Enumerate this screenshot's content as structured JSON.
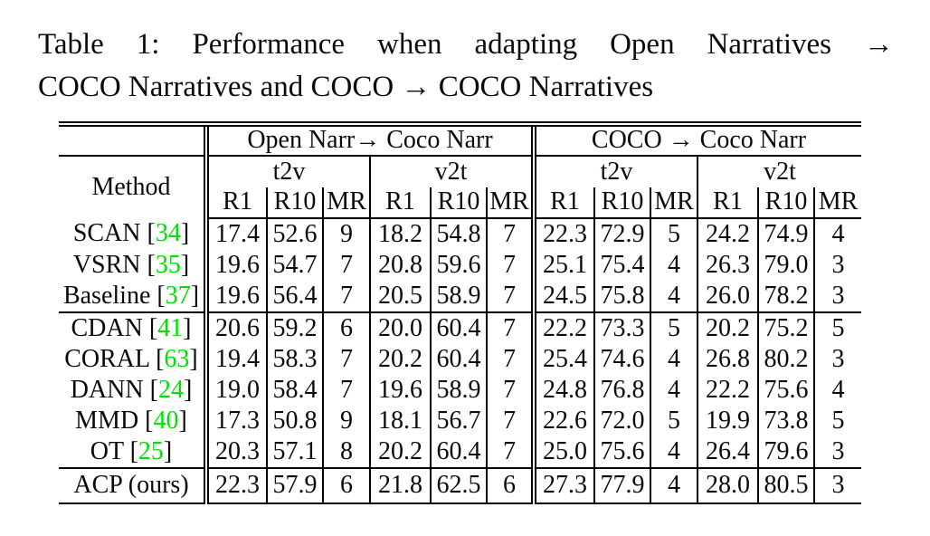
{
  "caption": {
    "line1": "Table 1: Performance when adapting Open Narratives →",
    "line2": "COCO Narratives and COCO → COCO Narratives"
  },
  "table": {
    "method_header": "Method",
    "groups": [
      "Open Narr→ Coco Narr",
      "COCO → Coco Narr"
    ],
    "directions": [
      "t2v",
      "v2t",
      "t2v",
      "v2t"
    ],
    "metrics": [
      "R1",
      "R10",
      "MR",
      "R1",
      "R10",
      "MR",
      "R1",
      "R10",
      "MR",
      "R1",
      "R10",
      "MR"
    ],
    "rows": [
      {
        "method": "SCAN",
        "cite": "34",
        "section": 0,
        "values": [
          "17.4",
          "52.6",
          "9",
          "18.2",
          "54.8",
          "7",
          "22.3",
          "72.9",
          "5",
          "24.2",
          "74.9",
          "4"
        ],
        "bold": []
      },
      {
        "method": "VSRN",
        "cite": "35",
        "section": 0,
        "values": [
          "19.6",
          "54.7",
          "7",
          "20.8",
          "59.6",
          "7",
          "25.1",
          "75.4",
          "4",
          "26.3",
          "79.0",
          "3"
        ],
        "bold": [
          8,
          11
        ]
      },
      {
        "method": "Baseline",
        "cite": "37",
        "section": 0,
        "values": [
          "19.6",
          "56.4",
          "7",
          "20.5",
          "58.9",
          "7",
          "24.5",
          "75.8",
          "4",
          "26.0",
          "78.2",
          "3"
        ],
        "bold": [
          8,
          11
        ]
      },
      {
        "method": "CDAN",
        "cite": "41",
        "section": 1,
        "values": [
          "20.6",
          "59.2",
          "6",
          "20.0",
          "60.4",
          "7",
          "22.2",
          "73.3",
          "5",
          "20.2",
          "75.2",
          "5"
        ],
        "bold": [
          1
        ]
      },
      {
        "method": "CORAL",
        "cite": "63",
        "section": 1,
        "values": [
          "19.4",
          "58.3",
          "7",
          "20.2",
          "60.4",
          "7",
          "25.4",
          "74.6",
          "4",
          "26.8",
          "80.2",
          "3"
        ],
        "bold": [
          8,
          11
        ]
      },
      {
        "method": "DANN",
        "cite": "24",
        "section": 1,
        "values": [
          "19.0",
          "58.4",
          "7",
          "19.6",
          "58.9",
          "7",
          "24.8",
          "76.8",
          "4",
          "22.2",
          "75.6",
          "4"
        ],
        "bold": [
          8
        ]
      },
      {
        "method": "MMD",
        "cite": "40",
        "section": 1,
        "values": [
          "17.3",
          "50.8",
          "9",
          "18.1",
          "56.7",
          "7",
          "22.6",
          "72.0",
          "5",
          "19.9",
          "73.8",
          "5"
        ],
        "bold": []
      },
      {
        "method": "OT",
        "cite": "25",
        "section": 1,
        "values": [
          "20.3",
          "57.1",
          "8",
          "20.2",
          "60.4",
          "7",
          "25.0",
          "75.6",
          "4",
          "26.4",
          "79.6",
          "3"
        ],
        "bold": [
          8,
          11
        ]
      },
      {
        "method": "ACP (ours)",
        "cite": null,
        "section": 2,
        "values": [
          "22.3",
          "57.9",
          "6",
          "21.8",
          "62.5",
          "6",
          "27.3",
          "77.9",
          "4",
          "28.0",
          "80.5",
          "3"
        ],
        "bold": [
          0,
          2,
          3,
          4,
          5,
          6,
          7,
          8,
          9,
          10,
          11
        ]
      }
    ]
  },
  "colors": {
    "citation_green": "#00e000",
    "text": "#0a0a0a",
    "background": "#ffffff"
  }
}
